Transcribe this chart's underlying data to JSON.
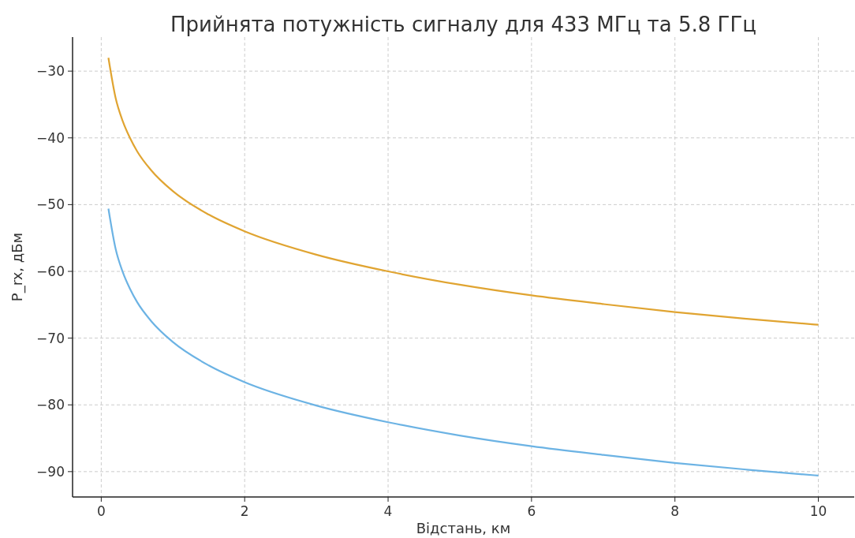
{
  "chart_data": {
    "type": "line",
    "title": "Прийнята потужність сигналу для 433 МГц та 5.8 ГГц",
    "xlabel": "Відстань, км",
    "ylabel": "P_rx, дБм",
    "x": [
      0.1,
      0.2,
      0.3,
      0.4,
      0.5,
      0.7,
      1,
      1.5,
      2,
      3,
      4,
      5,
      6,
      7,
      8,
      9,
      10
    ],
    "series": [
      {
        "color": "#e0a431",
        "values": [
          -28.0,
          -34.0,
          -37.5,
          -40.0,
          -42.0,
          -44.9,
          -48.0,
          -51.5,
          -54.0,
          -57.5,
          -60.0,
          -62.0,
          -63.6,
          -64.9,
          -66.1,
          -67.1,
          -68.0
        ]
      },
      {
        "color": "#6cb3e4",
        "values": [
          -50.6,
          -56.6,
          -60.1,
          -62.6,
          -64.6,
          -67.5,
          -70.6,
          -74.1,
          -76.6,
          -80.1,
          -82.6,
          -84.6,
          -86.2,
          -87.5,
          -88.7,
          -89.7,
          -90.6
        ]
      }
    ],
    "xlim": [
      -0.4,
      10.5
    ],
    "xticks": [
      0,
      2,
      4,
      6,
      8,
      10
    ],
    "ylim": [
      -93.8,
      -24.9
    ],
    "yticks": [
      -90,
      -80,
      -70,
      -60,
      -50,
      -40,
      -30
    ],
    "grid": true
  }
}
